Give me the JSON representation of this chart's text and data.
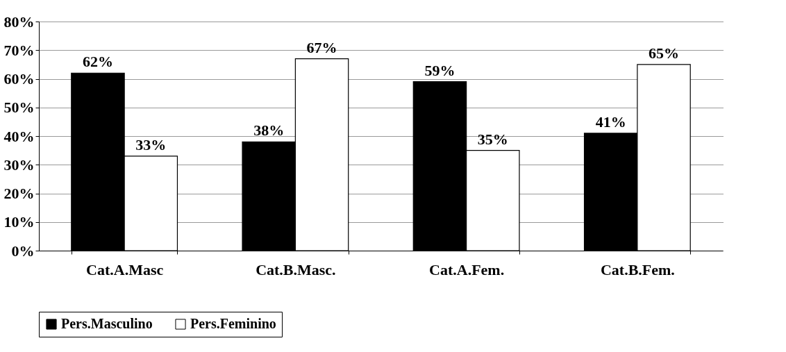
{
  "chart_data": {
    "type": "bar",
    "categories": [
      "Cat.A.Masc",
      "Cat.B.Masc.",
      "Cat.A.Fem.",
      "Cat.B.Fem."
    ],
    "series": [
      {
        "name": "Pers.Masculino",
        "color": "#000000",
        "values": [
          62,
          38,
          59,
          41
        ],
        "value_labels": [
          "62%",
          "38%",
          "59%",
          "41%"
        ]
      },
      {
        "name": "Pers.Feminino",
        "color": "#ffffff",
        "values": [
          33,
          67,
          35,
          65
        ],
        "value_labels": [
          "33%",
          "67%",
          "35%",
          "65%"
        ]
      }
    ],
    "ylim": [
      0,
      80
    ],
    "yticks": [
      {
        "value": 0,
        "label": "0%"
      },
      {
        "value": 10,
        "label": "10%"
      },
      {
        "value": 20,
        "label": "20%"
      },
      {
        "value": 30,
        "label": "30%"
      },
      {
        "value": 40,
        "label": "40%"
      },
      {
        "value": 50,
        "label": "50%"
      },
      {
        "value": 60,
        "label": "60%"
      },
      {
        "value": 70,
        "label": "70%"
      },
      {
        "value": 80,
        "label": "80%"
      }
    ],
    "grid": "y",
    "legend": "bottom"
  }
}
